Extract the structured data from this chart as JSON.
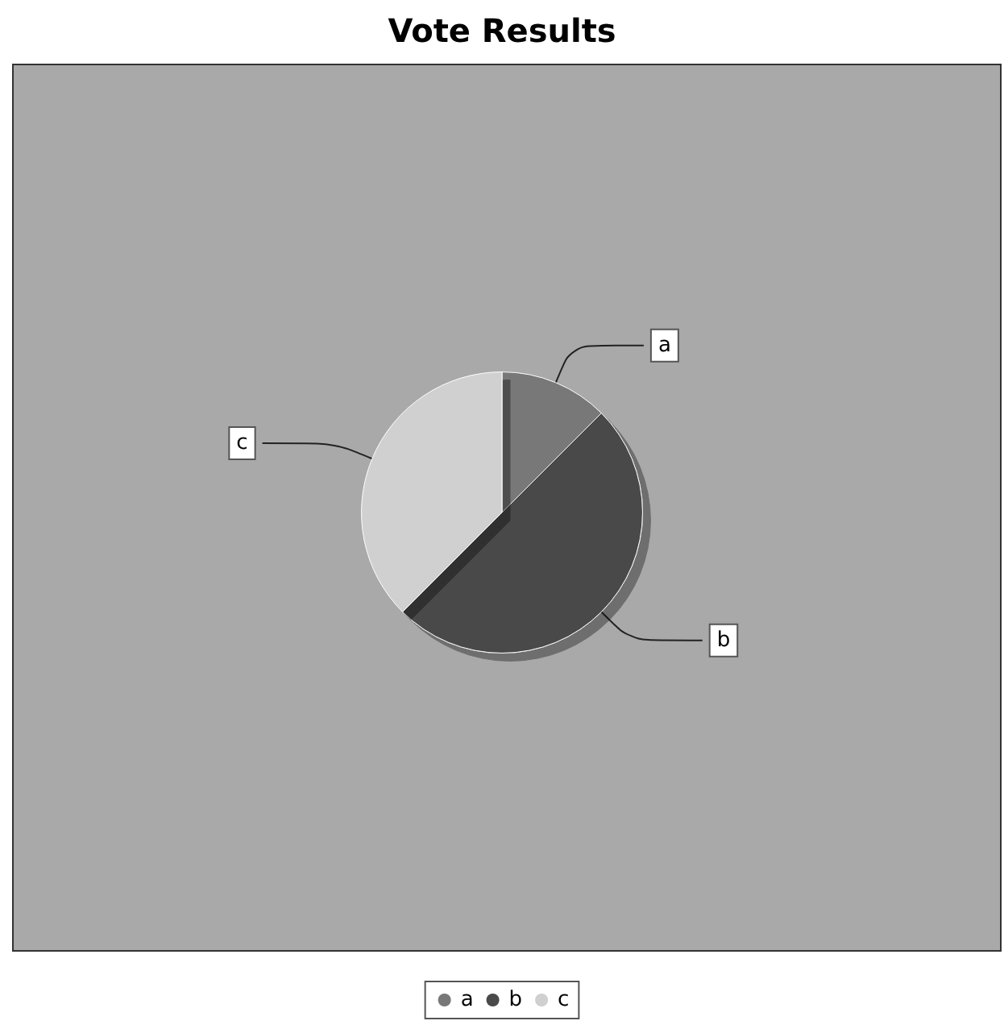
{
  "chart_data": {
    "type": "pie",
    "title": "Vote Results",
    "categories": [
      "a",
      "b",
      "c"
    ],
    "values": [
      12.5,
      50,
      37.5
    ],
    "colors": [
      "#787878",
      "#4a4a4a",
      "#d0d0d0"
    ],
    "legend": "bottom"
  }
}
